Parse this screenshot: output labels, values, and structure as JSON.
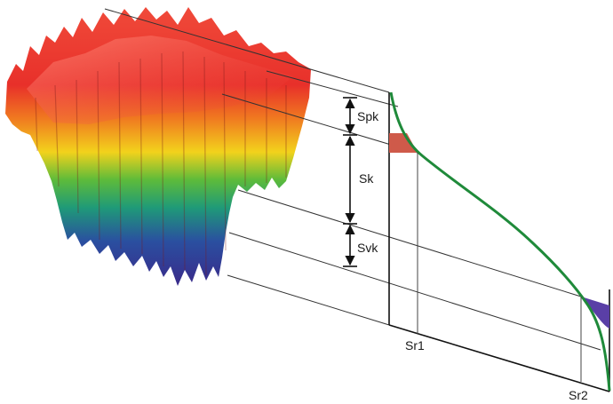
{
  "labels": {
    "spk": "Spk",
    "sk": "Sk",
    "svk": "Svk",
    "sr1": "Sr1",
    "sr2": "Sr2"
  },
  "colors": {
    "curve": "#1f8a3a",
    "peak_area": "#cf5a4a",
    "valley_area": "#5a3fa6",
    "lines": "#1a1a1a",
    "surface_high": "#e8302a",
    "surface_mid": "#f2d21c",
    "surface_low": "#2a2f9a"
  },
  "surface": {
    "kind": "3d-surface-topography",
    "color_scale": [
      "red",
      "orange",
      "yellow",
      "green",
      "teal",
      "blue",
      "indigo"
    ]
  }
}
